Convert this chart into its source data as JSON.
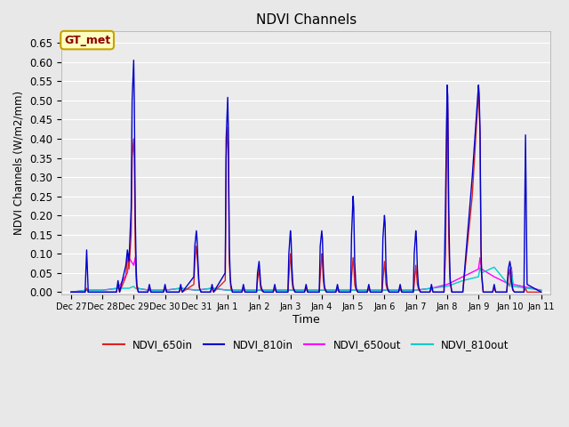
{
  "title": "NDVI Channels",
  "xlabel": "Time",
  "ylabel": "NDVI Channels (W/m2/mm)",
  "ylim": [
    -0.005,
    0.68
  ],
  "background_color": "#e8e8e8",
  "plot_bg_color": "#ebebeb",
  "grid_color": "white",
  "annotation_text": "GT_met",
  "annotation_bg": "#ffffc0",
  "annotation_border": "#c8a000",
  "annotation_text_color": "#8b0000",
  "xtick_labels": [
    "Dec 27",
    "Dec 28",
    "Dec 29",
    "Dec 30",
    "Dec 31",
    "Jan 1",
    "Jan 2",
    "Jan 3",
    "Jan 4",
    "Jan 5",
    "Jan 6",
    "Jan 7",
    "Jan 8",
    "Jan 9",
    "Jan 10",
    "Jan 11"
  ],
  "xtick_positions": [
    0,
    1,
    2,
    3,
    4,
    5,
    6,
    7,
    8,
    9,
    10,
    11,
    12,
    13,
    14,
    15
  ],
  "series": {
    "NDVI_650in": {
      "color": "#dd2222",
      "linewidth": 1.0,
      "x": [
        0,
        0.45,
        0.5,
        0.55,
        1.0,
        1.45,
        1.5,
        1.55,
        1.75,
        1.8,
        1.85,
        1.92,
        1.95,
        2.0,
        2.02,
        2.05,
        2.08,
        2.1,
        2.15,
        2.45,
        2.5,
        2.55,
        2.95,
        3.0,
        3.05,
        3.45,
        3.5,
        3.55,
        3.92,
        3.95,
        4.0,
        4.02,
        4.05,
        4.08,
        4.1,
        4.15,
        4.45,
        4.5,
        4.55,
        4.92,
        4.95,
        5.0,
        5.02,
        5.05,
        5.08,
        5.1,
        5.15,
        5.45,
        5.5,
        5.55,
        5.92,
        5.95,
        6.0,
        6.02,
        6.05,
        6.08,
        6.1,
        6.15,
        6.45,
        6.5,
        6.55,
        6.92,
        6.95,
        7.0,
        7.02,
        7.05,
        7.08,
        7.1,
        7.15,
        7.45,
        7.5,
        7.55,
        7.92,
        7.95,
        8.0,
        8.02,
        8.05,
        8.08,
        8.1,
        8.15,
        8.45,
        8.5,
        8.55,
        8.92,
        8.95,
        9.0,
        9.02,
        9.05,
        9.08,
        9.1,
        9.15,
        9.45,
        9.5,
        9.55,
        9.92,
        9.95,
        10.0,
        10.02,
        10.05,
        10.08,
        10.1,
        10.15,
        10.45,
        10.5,
        10.55,
        10.92,
        10.95,
        11.0,
        11.02,
        11.05,
        11.08,
        11.1,
        11.15,
        11.45,
        11.5,
        11.55,
        11.9,
        11.95,
        12.0,
        12.02,
        12.05,
        12.08,
        12.1,
        12.15,
        12.5,
        12.8,
        13.0,
        13.02,
        13.05,
        13.08,
        13.1,
        13.15,
        13.45,
        13.5,
        13.55,
        13.9,
        13.95,
        14.0,
        14.02,
        14.05,
        14.08,
        14.1,
        14.15,
        14.45,
        14.5,
        14.55,
        15.0
      ],
      "y": [
        0,
        0,
        0.01,
        0,
        0,
        0,
        0.02,
        0,
        0.04,
        0.1,
        0.06,
        0.15,
        0.35,
        0.4,
        0.35,
        0.12,
        0.04,
        0.01,
        0,
        0,
        0.01,
        0,
        0,
        0.01,
        0,
        0,
        0.01,
        0,
        0.02,
        0.08,
        0.12,
        0.1,
        0.06,
        0.02,
        0.01,
        0,
        0,
        0.01,
        0,
        0.03,
        0.35,
        0.43,
        0.37,
        0.08,
        0.03,
        0.01,
        0,
        0,
        0.01,
        0,
        0,
        0.03,
        0.06,
        0.04,
        0.01,
        0.005,
        0.002,
        0,
        0,
        0.01,
        0,
        0,
        0.04,
        0.1,
        0.08,
        0.03,
        0.01,
        0.005,
        0,
        0,
        0.01,
        0,
        0,
        0.04,
        0.1,
        0.08,
        0.03,
        0.01,
        0.005,
        0,
        0,
        0.01,
        0,
        0,
        0.04,
        0.09,
        0.07,
        0.02,
        0.01,
        0.005,
        0,
        0,
        0.01,
        0,
        0,
        0.03,
        0.08,
        0.06,
        0.02,
        0.01,
        0.005,
        0,
        0,
        0.01,
        0,
        0,
        0.02,
        0.07,
        0.05,
        0.02,
        0.01,
        0.005,
        0,
        0,
        0.01,
        0,
        0,
        0.1,
        0.53,
        0.47,
        0.15,
        0.05,
        0.02,
        0,
        0,
        0.25,
        0.52,
        0.5,
        0.4,
        0.1,
        0.04,
        0,
        0,
        0.01,
        0,
        0,
        0.04,
        0.06,
        0.04,
        0.02,
        0.01,
        0.005,
        0,
        0,
        0.01,
        0,
        0
      ]
    },
    "NDVI_810in": {
      "color": "#0000cc",
      "linewidth": 1.0,
      "x": [
        0,
        0.45,
        0.5,
        0.55,
        1.0,
        1.45,
        1.5,
        1.55,
        1.75,
        1.8,
        1.85,
        1.92,
        1.95,
        2.0,
        2.02,
        2.05,
        2.08,
        2.1,
        2.15,
        2.45,
        2.5,
        2.55,
        2.95,
        3.0,
        3.05,
        3.45,
        3.5,
        3.55,
        3.92,
        3.95,
        4.0,
        4.02,
        4.05,
        4.08,
        4.1,
        4.15,
        4.45,
        4.5,
        4.55,
        4.92,
        4.95,
        5.0,
        5.02,
        5.05,
        5.08,
        5.1,
        5.15,
        5.45,
        5.5,
        5.55,
        5.92,
        5.95,
        6.0,
        6.02,
        6.05,
        6.08,
        6.1,
        6.15,
        6.45,
        6.5,
        6.55,
        6.92,
        6.95,
        7.0,
        7.02,
        7.05,
        7.08,
        7.1,
        7.15,
        7.45,
        7.5,
        7.55,
        7.92,
        7.95,
        8.0,
        8.02,
        8.05,
        8.08,
        8.1,
        8.15,
        8.45,
        8.5,
        8.55,
        8.92,
        8.95,
        9.0,
        9.02,
        9.05,
        9.08,
        9.1,
        9.15,
        9.45,
        9.5,
        9.55,
        9.92,
        9.95,
        10.0,
        10.02,
        10.05,
        10.08,
        10.1,
        10.15,
        10.45,
        10.5,
        10.55,
        10.92,
        10.95,
        11.0,
        11.02,
        11.05,
        11.08,
        11.1,
        11.15,
        11.45,
        11.5,
        11.55,
        11.9,
        11.95,
        12.0,
        12.02,
        12.05,
        12.08,
        12.1,
        12.15,
        12.5,
        12.8,
        13.0,
        13.02,
        13.05,
        13.08,
        13.1,
        13.15,
        13.45,
        13.5,
        13.55,
        13.9,
        13.95,
        14.0,
        14.02,
        14.05,
        14.08,
        14.1,
        14.15,
        14.45,
        14.5,
        14.55,
        15.0
      ],
      "y": [
        0,
        0,
        0.11,
        0,
        0,
        0,
        0.03,
        0,
        0.07,
        0.11,
        0.08,
        0.22,
        0.5,
        0.605,
        0.5,
        0.2,
        0.06,
        0.02,
        0,
        0,
        0.02,
        0,
        0,
        0.02,
        0,
        0,
        0.02,
        0,
        0.04,
        0.12,
        0.16,
        0.14,
        0.08,
        0.03,
        0.01,
        0,
        0,
        0.02,
        0,
        0.05,
        0.4,
        0.508,
        0.42,
        0.12,
        0.04,
        0.02,
        0,
        0,
        0.02,
        0,
        0,
        0.05,
        0.08,
        0.06,
        0.02,
        0.01,
        0.005,
        0,
        0,
        0.02,
        0,
        0,
        0.1,
        0.16,
        0.14,
        0.06,
        0.02,
        0.01,
        0,
        0,
        0.02,
        0,
        0,
        0.12,
        0.16,
        0.14,
        0.06,
        0.02,
        0.01,
        0,
        0,
        0.02,
        0,
        0,
        0.15,
        0.25,
        0.22,
        0.08,
        0.03,
        0.01,
        0,
        0,
        0.02,
        0,
        0,
        0.14,
        0.2,
        0.18,
        0.06,
        0.02,
        0.01,
        0,
        0,
        0.02,
        0,
        0,
        0.1,
        0.16,
        0.14,
        0.06,
        0.02,
        0.01,
        0,
        0,
        0.02,
        0,
        0,
        0.25,
        0.54,
        0.51,
        0.22,
        0.08,
        0.03,
        0,
        0,
        0.3,
        0.54,
        0.52,
        0.42,
        0.12,
        0.05,
        0,
        0,
        0.02,
        0,
        0,
        0.06,
        0.08,
        0.07,
        0.03,
        0.015,
        0.005,
        0,
        0,
        0.41,
        0.02,
        0
      ]
    },
    "NDVI_650out": {
      "color": "#ff00ff",
      "linewidth": 1.0,
      "x": [
        0,
        0.5,
        1.0,
        1.5,
        1.8,
        1.85,
        2.0,
        2.05,
        2.1,
        2.5,
        3.0,
        3.5,
        4.0,
        4.5,
        5.0,
        5.05,
        5.1,
        5.5,
        6.0,
        6.5,
        7.0,
        7.5,
        8.0,
        8.5,
        9.0,
        9.5,
        10.0,
        10.5,
        11.0,
        11.5,
        12.0,
        12.5,
        13.0,
        13.05,
        13.1,
        13.5,
        14.0,
        14.05,
        14.1,
        15.0
      ],
      "y": [
        0,
        0.005,
        0.005,
        0.01,
        0.05,
        0.09,
        0.07,
        0.09,
        0.01,
        0.005,
        0.005,
        0.01,
        0.005,
        0.01,
        0.005,
        0.005,
        0.005,
        0.005,
        0.005,
        0.005,
        0.005,
        0.005,
        0.005,
        0.005,
        0.005,
        0.005,
        0.005,
        0.005,
        0.005,
        0.01,
        0.02,
        0.04,
        0.06,
        0.09,
        0.06,
        0.04,
        0.02,
        0.065,
        0.02,
        0.005
      ]
    },
    "NDVI_810out": {
      "color": "#00cccc",
      "linewidth": 1.0,
      "x": [
        0,
        0.5,
        1.0,
        1.5,
        1.8,
        1.85,
        2.0,
        2.05,
        2.1,
        2.5,
        3.0,
        3.5,
        4.0,
        4.5,
        5.0,
        5.05,
        5.1,
        5.5,
        6.0,
        6.5,
        7.0,
        7.5,
        8.0,
        8.5,
        9.0,
        9.5,
        10.0,
        10.5,
        11.0,
        11.5,
        12.0,
        12.5,
        13.0,
        13.05,
        13.1,
        13.5,
        14.0,
        14.05,
        14.1,
        15.0
      ],
      "y": [
        0,
        0.005,
        0.005,
        0.01,
        0.01,
        0.01,
        0.015,
        0.01,
        0.01,
        0.005,
        0.005,
        0.01,
        0.005,
        0.01,
        0.005,
        0.005,
        0.005,
        0.005,
        0.005,
        0.005,
        0.005,
        0.005,
        0.005,
        0.005,
        0.005,
        0.005,
        0.005,
        0.005,
        0.005,
        0.01,
        0.015,
        0.03,
        0.04,
        0.065,
        0.05,
        0.065,
        0.015,
        0.06,
        0.015,
        0.005
      ]
    }
  }
}
